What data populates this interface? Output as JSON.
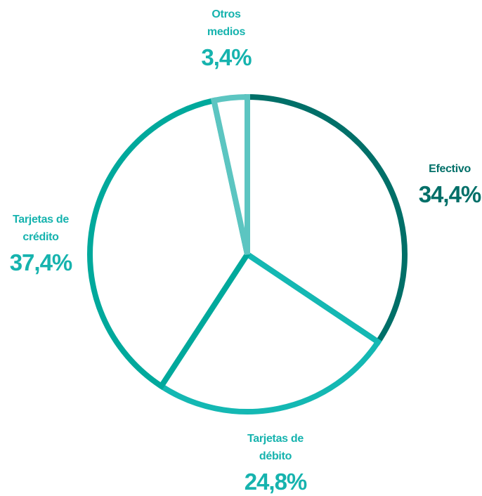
{
  "chart_data": {
    "type": "pie",
    "categories": [
      "Efectivo",
      "Tarjetas de débito",
      "Tarjetas de crédito",
      "Otros medios"
    ],
    "values": [
      34.4,
      24.8,
      37.4,
      3.4
    ],
    "value_labels": [
      "34,4%",
      "24,8%",
      "37,4%",
      "3,4%"
    ],
    "colors": [
      "#006f68",
      "#14b8b3",
      "#00a99c",
      "#5cc5c1"
    ]
  }
}
